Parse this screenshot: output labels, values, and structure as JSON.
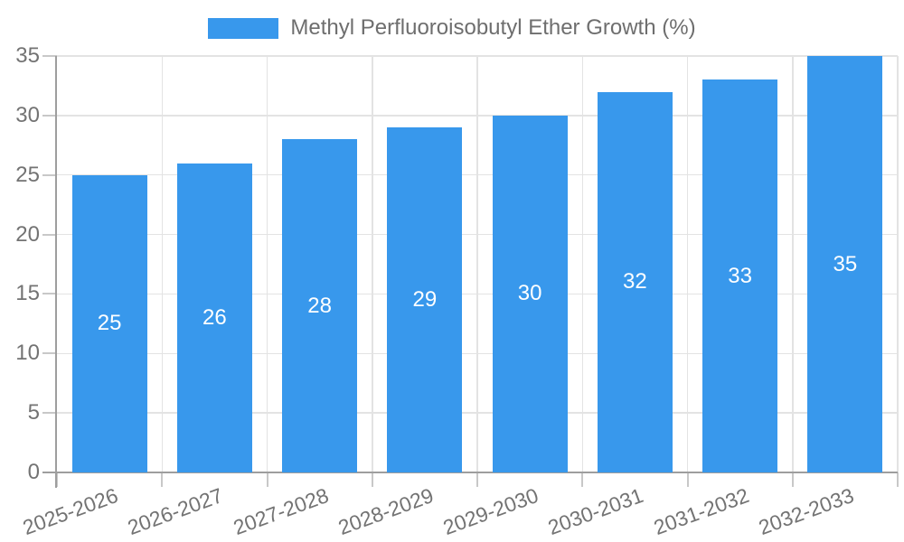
{
  "chart_data": {
    "type": "bar",
    "title": "",
    "legend": "Methyl Perfluoroisobutyl Ether Growth (%)",
    "legend_position": "top-center",
    "categories": [
      "2025-2026",
      "2026-2027",
      "2027-2028",
      "2028-2029",
      "2029-2030",
      "2030-2031",
      "2031-2032",
      "2032-2033"
    ],
    "series": [
      {
        "name": "Methyl Perfluoroisobutyl Ether Growth (%)",
        "values": [
          25,
          26,
          28,
          29,
          30,
          32,
          33,
          35
        ]
      }
    ],
    "xlabel": "",
    "ylabel": "",
    "ylim": [
      0,
      35
    ],
    "yticks": [
      0,
      5,
      10,
      15,
      20,
      25,
      30,
      35
    ],
    "grid": true,
    "x_label_rotation_deg": -20,
    "colors": {
      "bar": "#3898ec",
      "grid": "#e3e3e3",
      "axis": "#9e9e9e",
      "tick": "#c8c8c8",
      "label_text": "#737373",
      "legend_text": "#6e6e6e",
      "value_text": "#ffffff",
      "background": "#ffffff"
    }
  }
}
